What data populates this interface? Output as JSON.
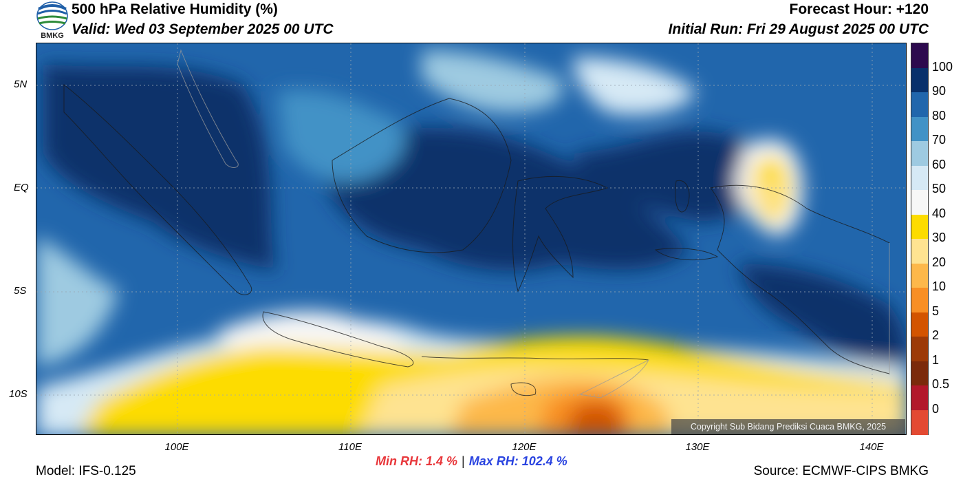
{
  "header": {
    "title": "500 hPa Relative Humidity (%)",
    "valid": "Valid: Wed 03 September 2025 00 UTC",
    "forecast_hour": "Forecast Hour: +120",
    "initial_run": "Initial Run: Fri 29 August 2025 00 UTC",
    "logo_text": "BMKG"
  },
  "map": {
    "lat_labels": [
      "5N",
      "EQ",
      "5S",
      "10S"
    ],
    "lon_labels": [
      "100E",
      "110E",
      "120E",
      "130E",
      "140E"
    ],
    "copyright": "Copyright Sub Bidang Prediksi Cuaca BMKG, 2025"
  },
  "colorbar": {
    "labels": [
      "100",
      "90",
      "80",
      "70",
      "60",
      "50",
      "40",
      "30",
      "20",
      "10",
      "5",
      "2",
      "1",
      "0.5",
      "0"
    ],
    "colors": [
      "#2d0a4e",
      "#08306b",
      "#2166ac",
      "#4292c6",
      "#9ecae1",
      "#d6e9f5",
      "#f7f7f7",
      "#fddc00",
      "#fee391",
      "#fdb84a",
      "#f88f24",
      "#d35400",
      "#9c3a07",
      "#7b2a0b",
      "#b2182b",
      "#e34a33"
    ]
  },
  "footer": {
    "model": "Model: IFS-0.125",
    "source": "Source: ECMWF-CIPS BMKG",
    "min_rh": "Min RH:   1.4 %",
    "separator": "|",
    "max_rh": "Max RH: 102.4 %"
  }
}
